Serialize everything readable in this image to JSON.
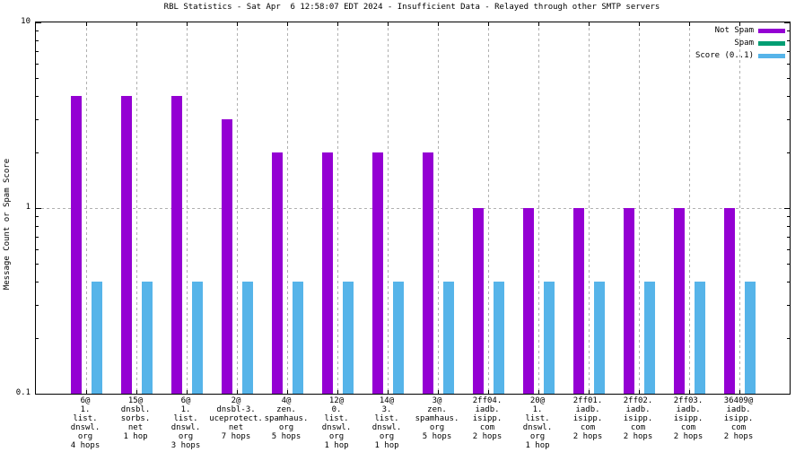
{
  "chart_data": {
    "type": "bar",
    "title": "RBL Statistics - Sat Apr  6 12:58:07 EDT 2024 - Insufficient Data - Relayed through other SMTP servers",
    "ylabel": "Message Count or Spam Score",
    "yscale": "log",
    "ylim": [
      0.1,
      10
    ],
    "ytick_labels": [
      "10",
      "1",
      "0.1"
    ],
    "ytick_values": [
      10,
      1,
      0.1
    ],
    "y_minor_ticks": [
      9,
      8,
      7,
      6,
      5,
      4,
      3,
      2,
      0.9,
      0.8,
      0.7,
      0.6,
      0.5,
      0.4,
      0.3,
      0.2
    ],
    "grid": {
      "vertical_dashed_per_category": true,
      "horizontal_dotted_at": 1
    },
    "legend_position": "top-right-inside",
    "categories": [
      [
        "6@",
        "1.",
        "list.",
        "dnswl.",
        "org",
        "4 hops"
      ],
      [
        "15@",
        "dnsbl.",
        "sorbs.",
        "net",
        "1 hop"
      ],
      [
        "6@",
        "1.",
        "list.",
        "dnswl.",
        "org",
        "3 hops"
      ],
      [
        "2@",
        "dnsbl-3.",
        "uceprotect.",
        "net",
        "7 hops"
      ],
      [
        "4@",
        "zen.",
        "spamhaus.",
        "org",
        "5 hops"
      ],
      [
        "12@",
        "0.",
        "list.",
        "dnswl.",
        "org",
        "1 hop"
      ],
      [
        "14@",
        "3.",
        "list.",
        "dnswl.",
        "org",
        "1 hop"
      ],
      [
        "3@",
        "zen.",
        "spamhaus.",
        "org",
        "5 hops"
      ],
      [
        "2ff04.",
        "iadb.",
        "isipp.",
        "com",
        "2 hops"
      ],
      [
        "20@",
        "1.",
        "list.",
        "dnswl.",
        "org",
        "1 hop"
      ],
      [
        "2ff01.",
        "iadb.",
        "isipp.",
        "com",
        "2 hops"
      ],
      [
        "2ff02.",
        "iadb.",
        "isipp.",
        "com",
        "2 hops"
      ],
      [
        "2ff03.",
        "iadb.",
        "isipp.",
        "com",
        "2 hops"
      ],
      [
        "36409@",
        "iadb.",
        "isipp.",
        "com",
        "2 hops"
      ]
    ],
    "series": [
      {
        "name": "Not Spam",
        "color": "#9400d3",
        "values": [
          4,
          4,
          4,
          3,
          2,
          2,
          2,
          2,
          1,
          1,
          1,
          1,
          1,
          1
        ]
      },
      {
        "name": "Spam",
        "color": "#009e73",
        "values": [
          0,
          0,
          0,
          0,
          0,
          0,
          0,
          0,
          0,
          0,
          0,
          0,
          0,
          0
        ]
      },
      {
        "name": "Score (0..1)",
        "color": "#56b4e9",
        "values": [
          0.4,
          0.4,
          0.4,
          0.4,
          0.4,
          0.4,
          0.4,
          0.4,
          0.4,
          0.4,
          0.4,
          0.4,
          0.4,
          0.4
        ]
      }
    ]
  }
}
